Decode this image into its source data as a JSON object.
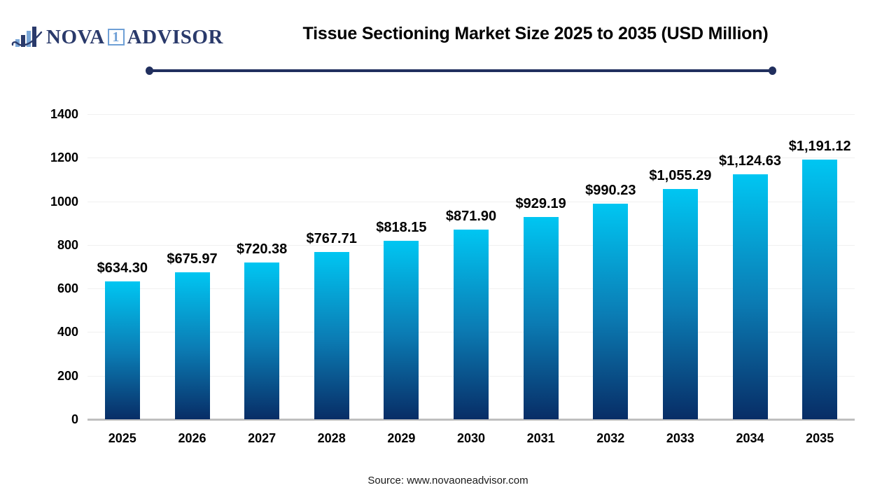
{
  "logo": {
    "brand_part1": "NOVA",
    "brand_badge": "1",
    "brand_part2": "ADVISOR",
    "navy": "#2a3a6b",
    "light_blue": "#6fa0d6"
  },
  "header": {
    "title": "Tissue Sectioning Market Size 2025 to 2035 (USD Million)"
  },
  "footer": {
    "source": "Source: www.novaoneadvisor.com"
  },
  "chart_data": {
    "type": "bar",
    "title": "Tissue Sectioning Market Size 2025 to 2035 (USD Million)",
    "categories": [
      "2025",
      "2026",
      "2027",
      "2028",
      "2029",
      "2030",
      "2031",
      "2032",
      "2033",
      "2034",
      "2035"
    ],
    "values": [
      634.3,
      675.97,
      720.38,
      767.71,
      818.15,
      871.9,
      929.19,
      990.23,
      1055.29,
      1124.63,
      1191.12
    ],
    "value_labels": [
      "$634.30",
      "$675.97",
      "$720.38",
      "$767.71",
      "$818.15",
      "$871.90",
      "$929.19",
      "$990.23",
      "$1,055.29",
      "$1,124.63",
      "$1,191.12"
    ],
    "xlabel": "",
    "ylabel": "",
    "ylim": [
      0,
      1400
    ],
    "yticks": [
      0,
      200,
      400,
      600,
      800,
      1000,
      1200,
      1400
    ],
    "grid": true,
    "legend": "none",
    "bar_color_top": "#00c6f2",
    "bar_color_mid": "#0b7cb4",
    "bar_color_bottom": "#082d66",
    "gridline_color": "#f0f0f0",
    "axis_line_color": "#bfbfbf"
  }
}
